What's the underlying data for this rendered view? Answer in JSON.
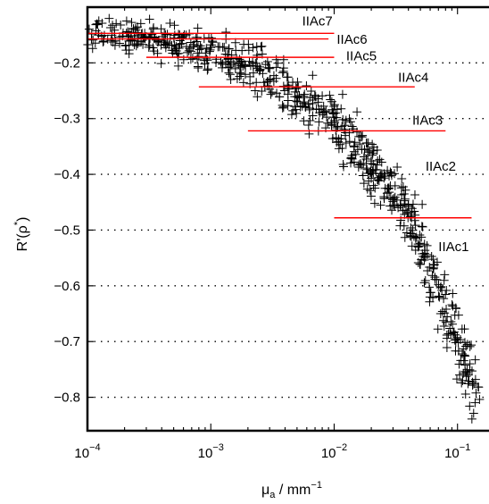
{
  "chart_data": {
    "type": "scatter",
    "title": "",
    "xlabel": {
      "base": "μ",
      "sub": "a",
      "rest": " / mm",
      "sup": "−1"
    },
    "ylabel": {
      "main": "R'(ρ",
      "sup": "*",
      "close": ")"
    },
    "x_scale": "log",
    "xlim": [
      0.0001,
      0.18
    ],
    "ylim": [
      -0.86,
      -0.1
    ],
    "x_ticks": [
      {
        "value": 0.0001,
        "base": "10",
        "exp": "−4"
      },
      {
        "value": 0.001,
        "base": "10",
        "exp": "−3"
      },
      {
        "value": 0.01,
        "base": "10",
        "exp": "−2"
      },
      {
        "value": 0.1,
        "base": "10",
        "exp": "−1"
      }
    ],
    "y_ticks": [
      {
        "value": -0.2,
        "label": "−0.2"
      },
      {
        "value": -0.3,
        "label": "−0.3"
      },
      {
        "value": -0.4,
        "label": "−0.4"
      },
      {
        "value": -0.5,
        "label": "−0.5"
      },
      {
        "value": -0.6,
        "label": "−0.6"
      },
      {
        "value": -0.7,
        "label": "−0.7"
      },
      {
        "value": -0.8,
        "label": "−0.8"
      }
    ],
    "grid": "y dotted",
    "marker": "+",
    "marker_color": "#000000",
    "band_color": "#ff0000",
    "bands": [
      {
        "label": "IIAc7",
        "y": -0.147,
        "x_start": 0.0001,
        "x_end": 0.01,
        "label_x": 0.0055,
        "label_y": -0.125
      },
      {
        "label": "IIAc6",
        "y": -0.157,
        "x_start": 0.0001,
        "x_end": 0.009,
        "label_x": 0.0105,
        "label_y": -0.158
      },
      {
        "label": "IIAc5",
        "y": -0.19,
        "x_start": 0.0003,
        "x_end": 0.01,
        "label_x": 0.0125,
        "label_y": -0.187
      },
      {
        "label": "IIAc4",
        "y": -0.243,
        "x_start": 0.0008,
        "x_end": 0.045,
        "label_x": 0.033,
        "label_y": -0.226
      },
      {
        "label": "IIAc3",
        "y": -0.322,
        "x_start": 0.002,
        "x_end": 0.08,
        "label_x": 0.043,
        "label_y": -0.303
      },
      {
        "label": "IIAc2",
        "y": null,
        "x_start": null,
        "x_end": null,
        "label_x": 0.055,
        "label_y": -0.385
      },
      {
        "label": "IIAc1",
        "y": -0.478,
        "x_start": 0.01,
        "x_end": 0.13,
        "label_x": 0.07,
        "label_y": -0.53
      }
    ],
    "trend": [
      {
        "x": 0.0001,
        "y": -0.145
      },
      {
        "x": 0.0003,
        "y": -0.155
      },
      {
        "x": 0.0006,
        "y": -0.17
      },
      {
        "x": 0.001,
        "y": -0.185
      },
      {
        "x": 0.002,
        "y": -0.205
      },
      {
        "x": 0.003,
        "y": -0.225
      },
      {
        "x": 0.004,
        "y": -0.24
      },
      {
        "x": 0.005,
        "y": -0.255
      },
      {
        "x": 0.007,
        "y": -0.28
      },
      {
        "x": 0.01,
        "y": -0.31
      },
      {
        "x": 0.015,
        "y": -0.35
      },
      {
        "x": 0.02,
        "y": -0.38
      },
      {
        "x": 0.03,
        "y": -0.43
      },
      {
        "x": 0.04,
        "y": -0.47
      },
      {
        "x": 0.05,
        "y": -0.52
      },
      {
        "x": 0.06,
        "y": -0.57
      },
      {
        "x": 0.08,
        "y": -0.64
      },
      {
        "x": 0.1,
        "y": -0.7
      },
      {
        "x": 0.12,
        "y": -0.76
      },
      {
        "x": 0.15,
        "y": -0.81
      }
    ],
    "point_count": 700,
    "scatter_spread": 0.022
  }
}
